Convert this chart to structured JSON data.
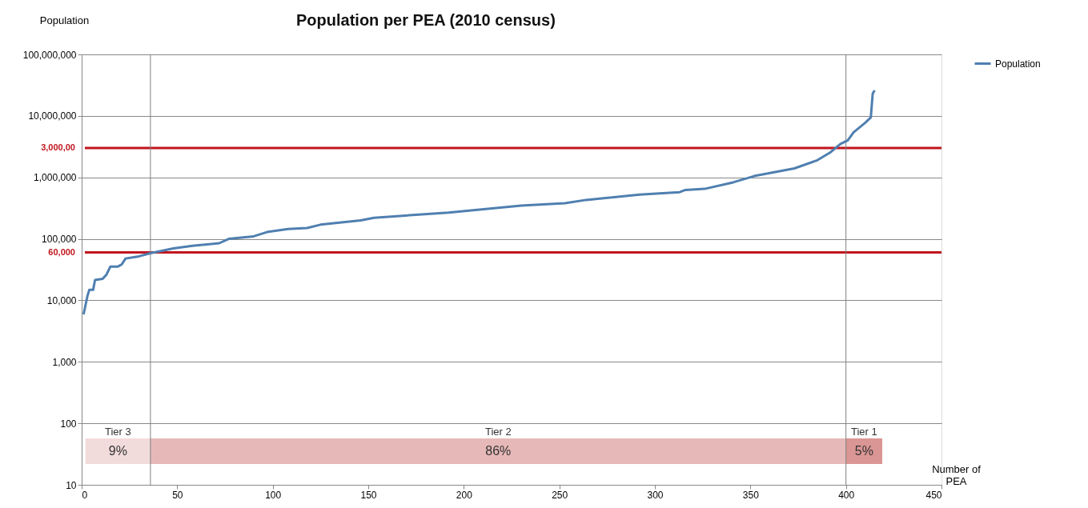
{
  "chart_data": {
    "type": "line",
    "title": "Population per PEA (2010 census)",
    "xlabel": "Number of PEA",
    "ylabel": "Population",
    "x": [
      1,
      3,
      4,
      6,
      7,
      11,
      13,
      15,
      19,
      21,
      23,
      30,
      36,
      48,
      58,
      72,
      77,
      90,
      97,
      108,
      118,
      125,
      146,
      153,
      192,
      230,
      253,
      264,
      292,
      313,
      316,
      326,
      341,
      352,
      373,
      385,
      392,
      397,
      401,
      404,
      410,
      413,
      414,
      415
    ],
    "series": [
      {
        "name": "Population",
        "color": "#4f7fb0",
        "values": [
          5900,
          11700,
          14800,
          14800,
          21400,
          22400,
          26300,
          35300,
          35500,
          38500,
          47900,
          52000,
          58400,
          70000,
          77000,
          85000,
          100000,
          110000,
          129000,
          145000,
          150000,
          170000,
          200000,
          220000,
          268000,
          348000,
          380000,
          430000,
          525000,
          576000,
          625000,
          650000,
          830000,
          1050000,
          1400000,
          1900000,
          2570000,
          3470000,
          4000000,
          5400000,
          7700000,
          9400000,
          23000000,
          26000000
        ]
      }
    ],
    "log": "y",
    "xlim": [
      0,
      450
    ],
    "xticks": [
      0,
      50,
      100,
      150,
      200,
      250,
      300,
      350,
      400,
      450
    ],
    "ylim": [
      10,
      100000000
    ],
    "yticks": [
      {
        "value": 10,
        "label": "10"
      },
      {
        "value": 100,
        "label": "100"
      },
      {
        "value": 1000,
        "label": "1,000"
      },
      {
        "value": 10000,
        "label": "10,000"
      },
      {
        "value": 100000,
        "label": "100,000"
      },
      {
        "value": 1000000,
        "label": "1,000,000"
      },
      {
        "value": 10000000,
        "label": "10,000,000"
      },
      {
        "value": 100000000,
        "label": "100,000,000"
      }
    ],
    "grid": "y",
    "legend": "top right",
    "marker": "none",
    "line_style": "solid",
    "ref_lines": [
      {
        "axis": "y",
        "value": 3000000,
        "label": "3,000,00",
        "color": "#c0161e"
      },
      {
        "axis": "y",
        "value": 60000,
        "label": "60,000",
        "color": "#c0161e"
      },
      {
        "axis": "x",
        "value": 36,
        "color": "#808080"
      },
      {
        "axis": "x",
        "value": 400,
        "color": "#808080"
      }
    ],
    "bands": [
      {
        "axis": "x",
        "from": 2,
        "to": 36,
        "label": "9%",
        "color": "#f2dcdb"
      },
      {
        "axis": "x",
        "from": 36,
        "to": 400,
        "label": "86%",
        "color": "#e6b9b8"
      },
      {
        "axis": "x",
        "from": 400,
        "to": 419,
        "label": "5%",
        "color": "#da9694"
      }
    ],
    "annotations": [
      "Tier 3",
      "Tier 2",
      "Tier 1"
    ]
  }
}
